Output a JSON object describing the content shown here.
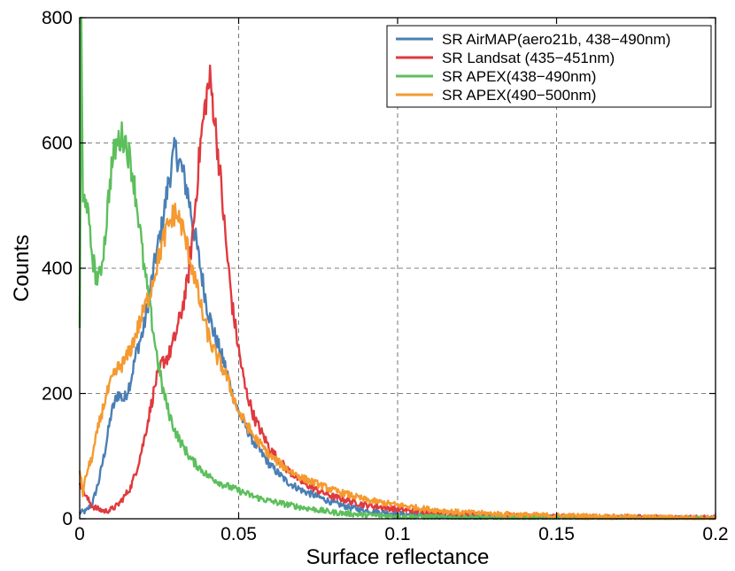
{
  "chart_data": {
    "type": "line",
    "xlabel": "Surface reflectance",
    "ylabel": "Counts",
    "xlim": [
      0,
      0.2
    ],
    "ylim": [
      0,
      800
    ],
    "xticks": [
      0,
      0.05,
      0.1,
      0.15,
      0.2
    ],
    "xtick_labels": [
      "0",
      "0.05",
      "0.1",
      "0.15",
      "0.2"
    ],
    "yticks": [
      0,
      200,
      400,
      600,
      800
    ],
    "ytick_labels": [
      "0",
      "200",
      "400",
      "600",
      "800"
    ],
    "grid": true,
    "legend_position": "top-right",
    "series": [
      {
        "name": "SR AirMAP(aero21b, 438−490nm)",
        "color": "#4a7fb5",
        "x": [
          0,
          0.002,
          0.004,
          0.006,
          0.008,
          0.01,
          0.012,
          0.014,
          0.016,
          0.018,
          0.02,
          0.022,
          0.024,
          0.026,
          0.028,
          0.03,
          0.032,
          0.034,
          0.036,
          0.038,
          0.04,
          0.042,
          0.044,
          0.046,
          0.048,
          0.05,
          0.055,
          0.06,
          0.065,
          0.07,
          0.075,
          0.08,
          0.085,
          0.09,
          0.1,
          0.11,
          0.12,
          0.14,
          0.16,
          0.18,
          0.2
        ],
        "y": [
          10,
          12,
          25,
          60,
          110,
          170,
          200,
          190,
          220,
          270,
          300,
          360,
          420,
          470,
          540,
          590,
          560,
          520,
          460,
          400,
          340,
          300,
          270,
          240,
          200,
          170,
          120,
          85,
          60,
          45,
          35,
          25,
          18,
          13,
          8,
          5,
          3,
          2,
          1,
          1,
          1
        ]
      },
      {
        "name": "SR Landsat (435−451nm)",
        "color": "#e0393e",
        "x": [
          0,
          0.002,
          0.004,
          0.006,
          0.008,
          0.01,
          0.012,
          0.014,
          0.016,
          0.018,
          0.02,
          0.022,
          0.024,
          0.026,
          0.028,
          0.03,
          0.032,
          0.034,
          0.036,
          0.038,
          0.04,
          0.041,
          0.042,
          0.044,
          0.046,
          0.048,
          0.05,
          0.052,
          0.055,
          0.06,
          0.065,
          0.07,
          0.075,
          0.08,
          0.085,
          0.09,
          0.1,
          0.11,
          0.12,
          0.14,
          0.16,
          0.18,
          0.2
        ],
        "y": [
          60,
          35,
          20,
          15,
          12,
          15,
          22,
          35,
          50,
          80,
          120,
          170,
          220,
          250,
          260,
          290,
          330,
          380,
          480,
          600,
          680,
          700,
          660,
          560,
          440,
          340,
          270,
          210,
          160,
          110,
          80,
          58,
          45,
          35,
          28,
          22,
          15,
          10,
          7,
          4,
          3,
          2,
          1
        ]
      },
      {
        "name": "SR APEX(438−490nm)",
        "color": "#5cbf5c",
        "x": [
          0,
          0.0005,
          0.001,
          0.002,
          0.003,
          0.004,
          0.005,
          0.006,
          0.007,
          0.008,
          0.009,
          0.01,
          0.011,
          0.012,
          0.013,
          0.014,
          0.015,
          0.016,
          0.017,
          0.018,
          0.019,
          0.02,
          0.022,
          0.024,
          0.026,
          0.028,
          0.03,
          0.032,
          0.035,
          0.04,
          0.045,
          0.05,
          0.055,
          0.06,
          0.07,
          0.08,
          0.09,
          0.1,
          0.12,
          0.15,
          0.2
        ],
        "y": [
          310,
          790,
          500,
          520,
          460,
          420,
          390,
          380,
          410,
          450,
          510,
          560,
          590,
          600,
          610,
          610,
          590,
          570,
          540,
          500,
          460,
          410,
          340,
          270,
          210,
          170,
          140,
          120,
          95,
          70,
          55,
          45,
          35,
          28,
          18,
          10,
          6,
          4,
          2,
          1,
          0
        ]
      },
      {
        "name": "SR APEX(490−500nm)",
        "color": "#f59a30",
        "x": [
          0,
          0.001,
          0.002,
          0.004,
          0.006,
          0.008,
          0.01,
          0.012,
          0.014,
          0.016,
          0.018,
          0.02,
          0.022,
          0.024,
          0.026,
          0.028,
          0.03,
          0.032,
          0.034,
          0.036,
          0.038,
          0.04,
          0.042,
          0.044,
          0.046,
          0.048,
          0.05,
          0.055,
          0.06,
          0.065,
          0.07,
          0.075,
          0.08,
          0.085,
          0.09,
          0.1,
          0.11,
          0.12,
          0.14,
          0.16,
          0.18,
          0.2
        ],
        "y": [
          80,
          40,
          70,
          100,
          150,
          190,
          220,
          240,
          250,
          270,
          300,
          330,
          360,
          400,
          440,
          470,
          490,
          470,
          430,
          390,
          340,
          300,
          270,
          250,
          230,
          200,
          170,
          130,
          100,
          80,
          65,
          55,
          45,
          38,
          30,
          22,
          15,
          10,
          6,
          4,
          2,
          1
        ]
      }
    ]
  }
}
